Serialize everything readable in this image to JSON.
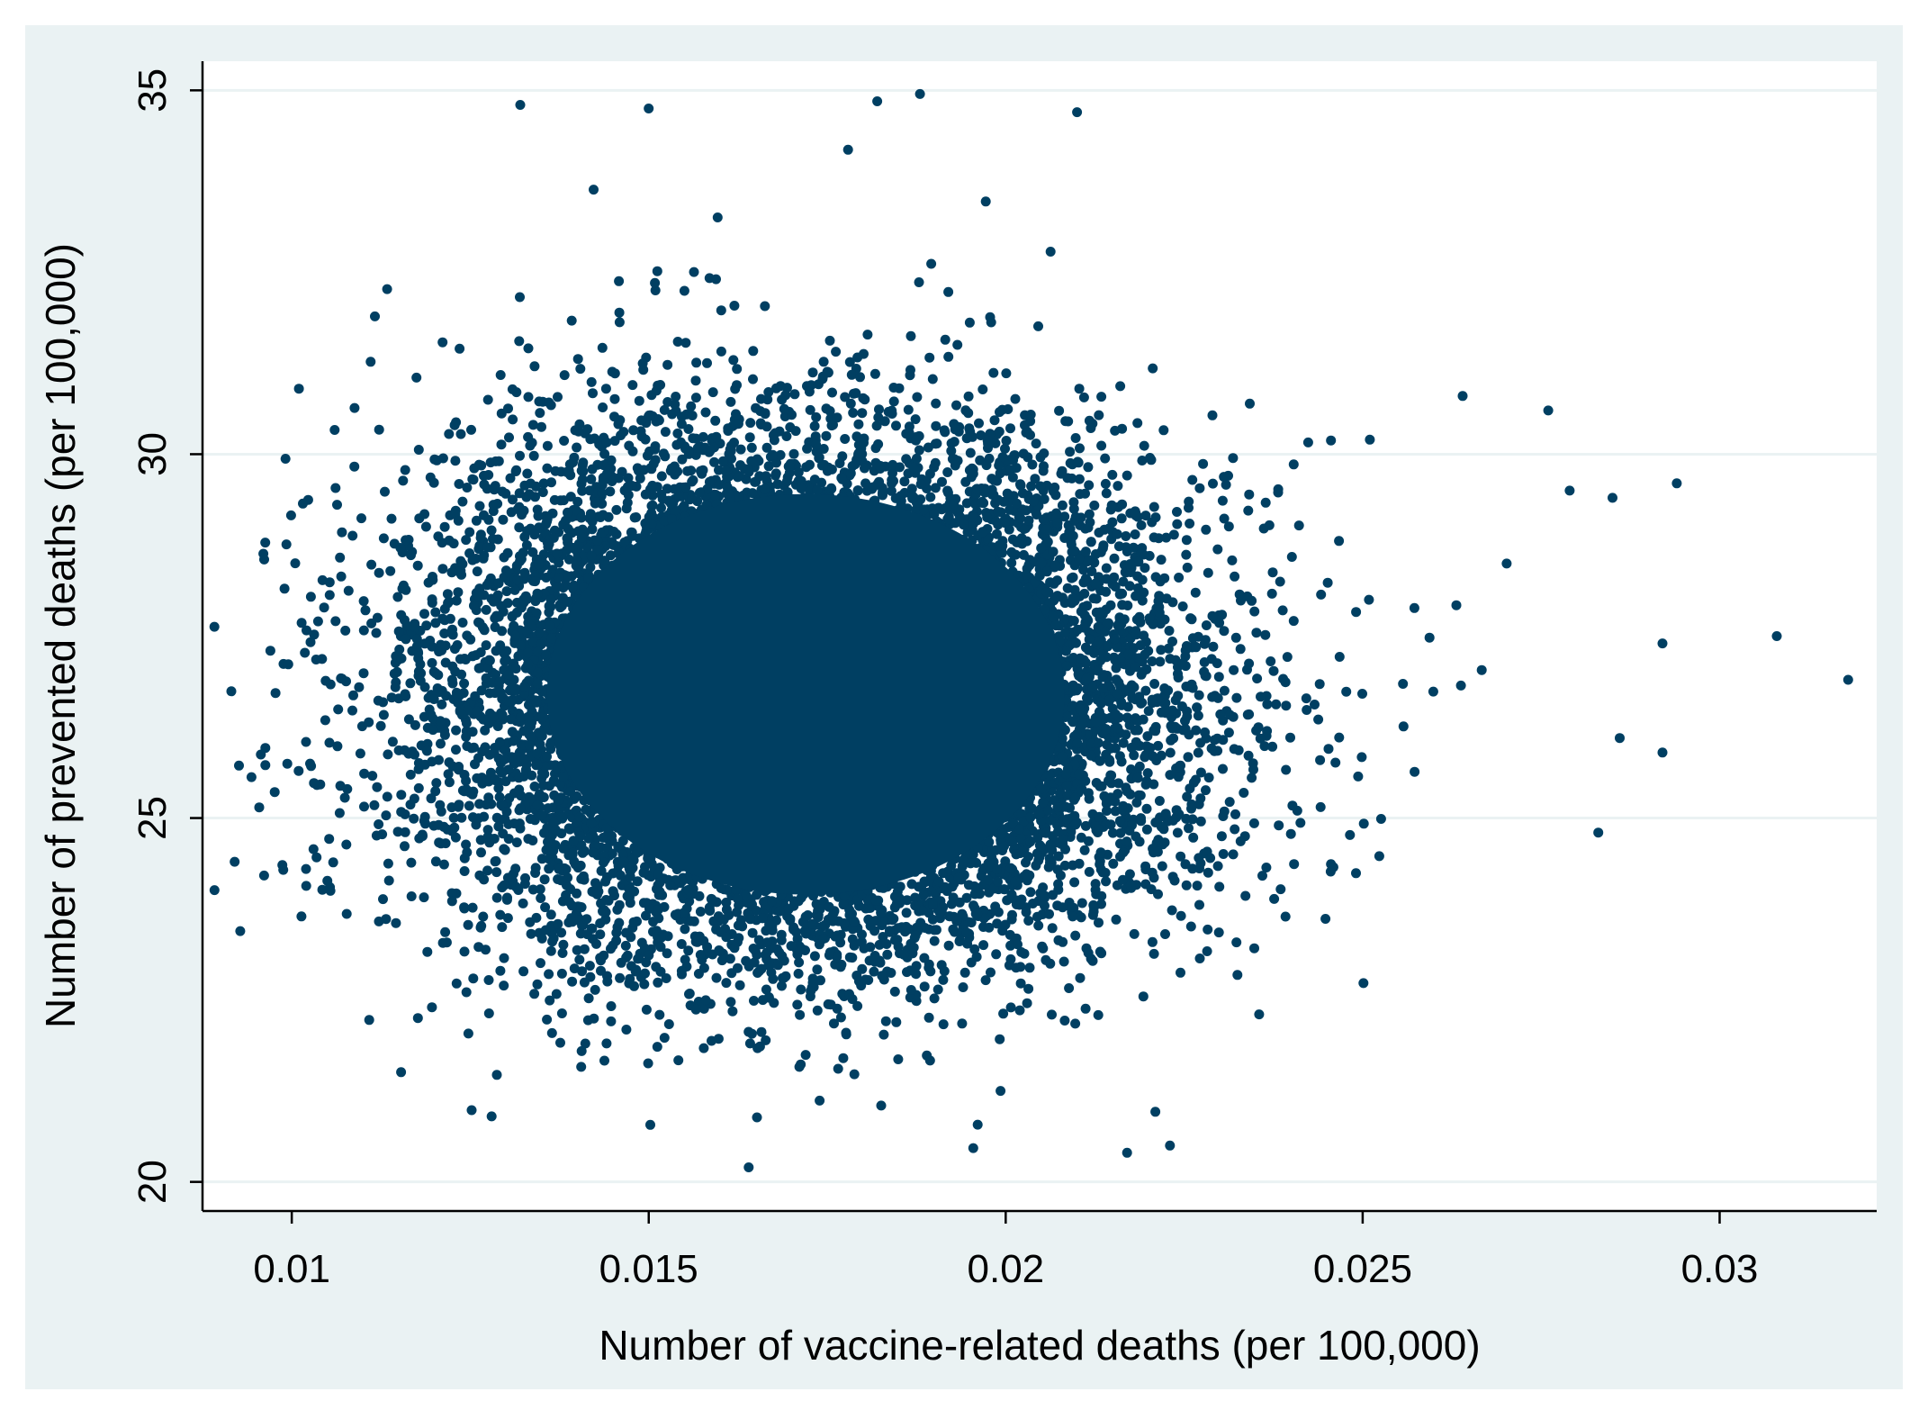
{
  "chart_data": {
    "type": "scatter",
    "title": "",
    "xlabel": "Number of vaccine-related deaths (per 100,000)",
    "ylabel": "Number of prevented deaths (per 100,000)",
    "xlim": [
      0.00875,
      0.0322
    ],
    "ylim": [
      19.6,
      35.4
    ],
    "xticks": [
      0.01,
      0.015,
      0.02,
      0.025,
      0.03
    ],
    "xtick_labels": [
      "0.01",
      "0.015",
      "0.02",
      "0.025",
      "0.03"
    ],
    "yticks": [
      20,
      25,
      30,
      35
    ],
    "ytick_labels": [
      "20",
      "25",
      "30",
      "35"
    ],
    "grid": "horizontal",
    "legend": "none",
    "colors": {
      "outer_background": "#EAF2F3",
      "plot_background": "#FFFFFF",
      "marker": "#003F62",
      "grid": "#EAF2F3",
      "axis": "#000000"
    },
    "distribution": {
      "x_mean": 0.0172,
      "x_sd": 0.0025,
      "y_mean": 26.7,
      "y_sd": 1.72,
      "n_points": 14000
    },
    "outlier_points": [
      {
        "x": 0.0092,
        "y": 24.4
      },
      {
        "x": 0.0097,
        "y": 27.3
      },
      {
        "x": 0.0101,
        "y": 30.9
      },
      {
        "x": 0.0102,
        "y": 24.3
      },
      {
        "x": 0.0132,
        "y": 34.8
      },
      {
        "x": 0.015,
        "y": 34.75
      },
      {
        "x": 0.0182,
        "y": 34.85
      },
      {
        "x": 0.0188,
        "y": 34.95
      },
      {
        "x": 0.021,
        "y": 34.7
      },
      {
        "x": 0.0128,
        "y": 20.9
      },
      {
        "x": 0.0164,
        "y": 20.2
      },
      {
        "x": 0.0217,
        "y": 20.4
      },
      {
        "x": 0.0223,
        "y": 20.5
      },
      {
        "x": 0.0264,
        "y": 30.8
      },
      {
        "x": 0.0276,
        "y": 30.6
      },
      {
        "x": 0.0279,
        "y": 29.5
      },
      {
        "x": 0.0285,
        "y": 29.4
      },
      {
        "x": 0.0294,
        "y": 29.6
      },
      {
        "x": 0.0308,
        "y": 27.5
      },
      {
        "x": 0.0318,
        "y": 26.9
      },
      {
        "x": 0.0292,
        "y": 25.9
      },
      {
        "x": 0.0292,
        "y": 27.4
      },
      {
        "x": 0.0283,
        "y": 24.8
      },
      {
        "x": 0.0286,
        "y": 26.1
      }
    ]
  }
}
